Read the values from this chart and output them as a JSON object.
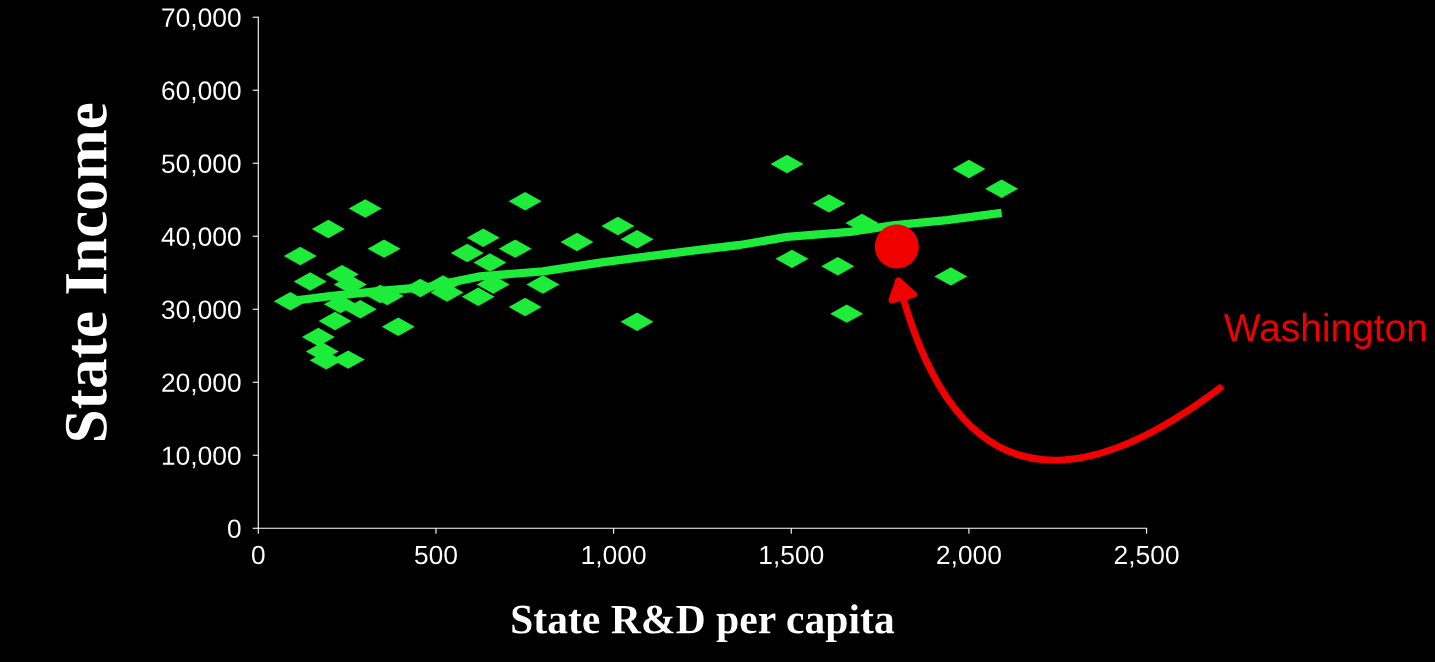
{
  "chart_data": {
    "type": "scatter",
    "xlabel": "State R&D per capita",
    "ylabel": "State Income",
    "xlim": [
      0,
      2500
    ],
    "xticks": [
      0,
      500,
      {
        "value": 1000,
        "label": "1,000"
      },
      {
        "value": 1500,
        "label": "1,500"
      },
      {
        "value": 2000,
        "label": "2,000"
      },
      {
        "value": 2500,
        "label": "2,500"
      }
    ],
    "ylim": [
      0,
      70000
    ],
    "yticks": [
      0,
      {
        "value": 10000,
        "label": "10,000"
      },
      {
        "value": 20000,
        "label": "20,000"
      },
      {
        "value": 30000,
        "label": "30,000"
      },
      {
        "value": 40000,
        "label": "40,000"
      },
      {
        "value": 50000,
        "label": "50,000"
      },
      {
        "value": 60000,
        "label": "60,000"
      },
      {
        "value": 70000,
        "label": "70,000"
      }
    ],
    "grid": false,
    "legend": false,
    "series": [
      {
        "marker": "diamond",
        "color": "#1ded3a",
        "x": [
          118,
          90,
          146,
          197,
          301,
          236,
          259,
          354,
          394,
          169,
          180,
          191,
          253,
          216,
          231,
          287,
          343,
          363,
          456,
          520,
          531,
          633,
          723,
          751,
          588,
          652,
          661,
          619,
          801,
          751,
          897,
          1012,
          1066,
          1066,
          1488,
          1606,
          1699,
          1502,
          1631,
          1656,
          1949,
          2000,
          2092
        ],
        "values": [
          37300,
          31100,
          33800,
          41000,
          43800,
          34800,
          33400,
          38300,
          27600,
          26200,
          24200,
          23000,
          23100,
          28400,
          30700,
          30000,
          32100,
          31800,
          32900,
          33400,
          32300,
          39800,
          38300,
          44800,
          37700,
          36400,
          33400,
          31700,
          33400,
          30300,
          39200,
          41400,
          39600,
          28300,
          49900,
          44500,
          41800,
          36900,
          35900,
          29400,
          34500,
          49200,
          46500
        ]
      },
      {
        "type": "line",
        "marker": "none",
        "line_style": "solid",
        "color": "#1ded3a",
        "x": [
          90,
          202,
          343,
          484,
          624,
          801,
          962,
          1074,
          1251,
          1355,
          1488,
          1665,
          1786,
          1938,
          2092
        ],
        "values": [
          31100,
          31800,
          32500,
          33100,
          34500,
          35200,
          36400,
          37100,
          38200,
          38800,
          39900,
          40600,
          41500,
          42200,
          43200
        ]
      },
      {
        "marker": "circle",
        "color": "#f00000",
        "x": [
          1797
        ],
        "values": [
          38600
        ]
      }
    ],
    "annotations": [
      "Washington"
    ]
  }
}
